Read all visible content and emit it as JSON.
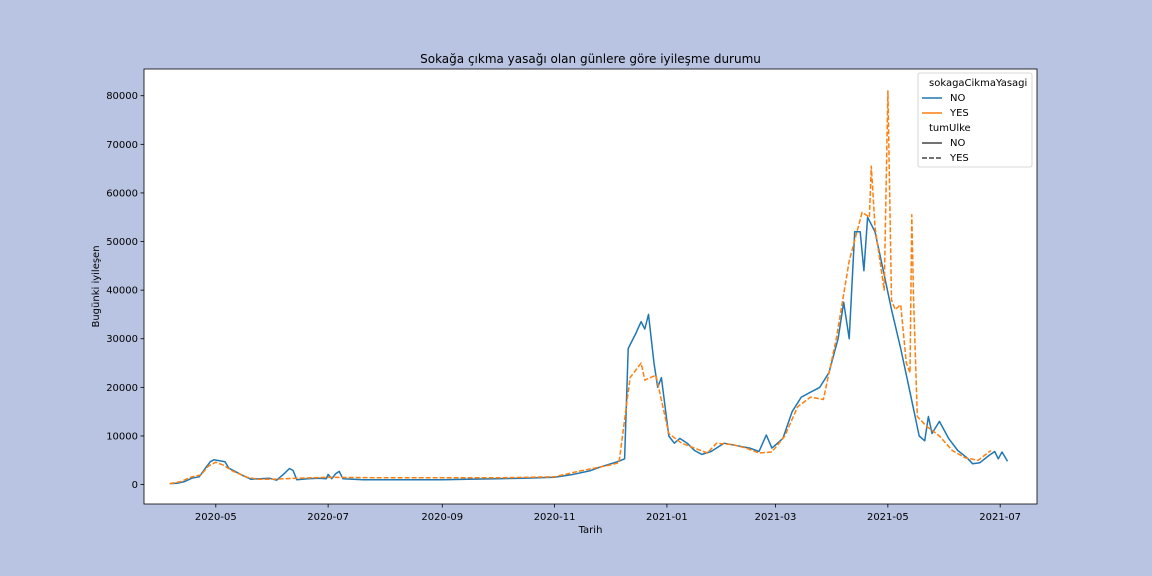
{
  "chart_data": {
    "type": "line",
    "title": "Sokağa çıkma yasağı olan günlere göre iyileşme durumu",
    "xlabel": "Tarih",
    "ylabel": "Bugünki iyileşen",
    "xlim": [
      "2020-03-23",
      "2021-07-21"
    ],
    "ylim": [
      -4000,
      85500
    ],
    "x_ticks": [
      "2020-05",
      "2020-07",
      "2020-09",
      "2020-11",
      "2021-01",
      "2021-03",
      "2021-05",
      "2021-07"
    ],
    "y_ticks": [
      0,
      10000,
      20000,
      30000,
      40000,
      50000,
      60000,
      70000,
      80000
    ],
    "grid": false,
    "legend": {
      "placement": "top-right",
      "hue_title": "sokagaCikmaYasagi",
      "style_title": "tumUlke",
      "hue_entries": [
        {
          "label": "NO",
          "color": "#1f77b4"
        },
        {
          "label": "YES",
          "color": "#ff7f0e"
        }
      ],
      "style_entries": [
        {
          "label": "NO",
          "dash": "solid"
        },
        {
          "label": "YES",
          "dash": "dashed"
        }
      ]
    },
    "series": [
      {
        "name": "NO",
        "color": "#1f77b4",
        "dash": "solid",
        "points": [
          [
            "2020-04-06",
            200
          ],
          [
            "2020-04-10",
            250
          ],
          [
            "2020-04-14",
            600
          ],
          [
            "2020-04-18",
            1300
          ],
          [
            "2020-04-22",
            1600
          ],
          [
            "2020-04-25",
            3200
          ],
          [
            "2020-04-28",
            4700
          ],
          [
            "2020-04-30",
            5100
          ],
          [
            "2020-05-03",
            4900
          ],
          [
            "2020-05-06",
            4700
          ],
          [
            "2020-05-08",
            3400
          ],
          [
            "2020-05-12",
            2600
          ],
          [
            "2020-05-16",
            1800
          ],
          [
            "2020-05-20",
            1100
          ],
          [
            "2020-05-25",
            1200
          ],
          [
            "2020-05-30",
            1300
          ],
          [
            "2020-06-03",
            900
          ],
          [
            "2020-06-07",
            2200
          ],
          [
            "2020-06-10",
            3300
          ],
          [
            "2020-06-12",
            2900
          ],
          [
            "2020-06-14",
            1000
          ],
          [
            "2020-06-20",
            1200
          ],
          [
            "2020-06-26",
            1300
          ],
          [
            "2020-06-30",
            1200
          ],
          [
            "2020-07-01",
            2100
          ],
          [
            "2020-07-03",
            1200
          ],
          [
            "2020-07-05",
            2200
          ],
          [
            "2020-07-07",
            2700
          ],
          [
            "2020-07-09",
            1200
          ],
          [
            "2020-07-20",
            1000
          ],
          [
            "2020-08-01",
            1000
          ],
          [
            "2020-08-15",
            1000
          ],
          [
            "2020-09-01",
            1000
          ],
          [
            "2020-09-15",
            1100
          ],
          [
            "2020-10-01",
            1200
          ],
          [
            "2020-10-15",
            1300
          ],
          [
            "2020-11-01",
            1500
          ],
          [
            "2020-11-10",
            2000
          ],
          [
            "2020-11-20",
            2800
          ],
          [
            "2020-11-25",
            3500
          ],
          [
            "2020-12-01",
            4200
          ],
          [
            "2020-12-06",
            4800
          ],
          [
            "2020-12-09",
            5300
          ],
          [
            "2020-12-11",
            28000
          ],
          [
            "2020-12-15",
            31000
          ],
          [
            "2020-12-18",
            33500
          ],
          [
            "2020-12-20",
            32000
          ],
          [
            "2020-12-22",
            35000
          ],
          [
            "2020-12-25",
            25000
          ],
          [
            "2020-12-27",
            20000
          ],
          [
            "2020-12-29",
            22000
          ],
          [
            "2020-12-31",
            16000
          ],
          [
            "2021-01-02",
            10000
          ],
          [
            "2021-01-05",
            8500
          ],
          [
            "2021-01-08",
            9500
          ],
          [
            "2021-01-12",
            8500
          ],
          [
            "2021-01-16",
            7000
          ],
          [
            "2021-01-20",
            6200
          ],
          [
            "2021-01-25",
            6800
          ],
          [
            "2021-02-01",
            8500
          ],
          [
            "2021-02-08",
            8000
          ],
          [
            "2021-02-15",
            7500
          ],
          [
            "2021-02-20",
            6800
          ],
          [
            "2021-02-24",
            10200
          ],
          [
            "2021-02-27",
            7500
          ],
          [
            "2021-03-05",
            9500
          ],
          [
            "2021-03-10",
            15000
          ],
          [
            "2021-03-15",
            18000
          ],
          [
            "2021-03-20",
            19000
          ],
          [
            "2021-03-25",
            20000
          ],
          [
            "2021-03-30",
            23000
          ],
          [
            "2021-04-04",
            30000
          ],
          [
            "2021-04-07",
            37500
          ],
          [
            "2021-04-10",
            30000
          ],
          [
            "2021-04-13",
            52000
          ],
          [
            "2021-04-16",
            52000
          ],
          [
            "2021-04-18",
            44000
          ],
          [
            "2021-04-20",
            55000
          ],
          [
            "2021-04-24",
            52000
          ],
          [
            "2021-04-28",
            45000
          ],
          [
            "2021-05-03",
            36000
          ],
          [
            "2021-05-08",
            28000
          ],
          [
            "2021-05-13",
            19000
          ],
          [
            "2021-05-18",
            10000
          ],
          [
            "2021-05-21",
            9000
          ],
          [
            "2021-05-23",
            14000
          ],
          [
            "2021-05-25",
            10500
          ],
          [
            "2021-05-29",
            13000
          ],
          [
            "2021-06-03",
            9500
          ],
          [
            "2021-06-08",
            7000
          ],
          [
            "2021-06-13",
            5500
          ],
          [
            "2021-06-16",
            4300
          ],
          [
            "2021-06-20",
            4500
          ],
          [
            "2021-06-25",
            6000
          ],
          [
            "2021-06-28",
            6800
          ],
          [
            "2021-06-30",
            5300
          ],
          [
            "2021-07-02",
            6700
          ],
          [
            "2021-07-05",
            4800
          ]
        ]
      },
      {
        "name": "YES",
        "color": "#ff7f0e",
        "dash": "dashed",
        "points": [
          [
            "2020-04-06",
            200
          ],
          [
            "2020-04-12",
            600
          ],
          [
            "2020-04-18",
            1600
          ],
          [
            "2020-04-23",
            2000
          ],
          [
            "2020-04-27",
            3800
          ],
          [
            "2020-05-01",
            4600
          ],
          [
            "2020-05-05",
            4000
          ],
          [
            "2020-05-10",
            2800
          ],
          [
            "2020-05-18",
            1500
          ],
          [
            "2020-05-24",
            1100
          ],
          [
            "2020-06-01",
            1100
          ],
          [
            "2020-06-15",
            1300
          ],
          [
            "2020-07-01",
            1500
          ],
          [
            "2020-08-01",
            1400
          ],
          [
            "2020-09-01",
            1400
          ],
          [
            "2020-10-01",
            1400
          ],
          [
            "2020-11-01",
            1600
          ],
          [
            "2020-11-15",
            2800
          ],
          [
            "2020-12-01",
            4000
          ],
          [
            "2020-12-06",
            4500
          ],
          [
            "2020-12-12",
            22000
          ],
          [
            "2020-12-18",
            25000
          ],
          [
            "2020-12-20",
            21500
          ],
          [
            "2020-12-26",
            22500
          ],
          [
            "2021-01-02",
            10500
          ],
          [
            "2021-01-09",
            8500
          ],
          [
            "2021-01-16",
            7500
          ],
          [
            "2021-01-23",
            6500
          ],
          [
            "2021-01-28",
            8500
          ],
          [
            "2021-02-06",
            8200
          ],
          [
            "2021-02-13",
            7500
          ],
          [
            "2021-02-20",
            6500
          ],
          [
            "2021-02-27",
            6700
          ],
          [
            "2021-03-06",
            10000
          ],
          [
            "2021-03-13",
            16000
          ],
          [
            "2021-03-20",
            18000
          ],
          [
            "2021-03-27",
            17500
          ],
          [
            "2021-04-03",
            30000
          ],
          [
            "2021-04-10",
            46000
          ],
          [
            "2021-04-17",
            56000
          ],
          [
            "2021-04-21",
            55000
          ],
          [
            "2021-04-22",
            65500
          ],
          [
            "2021-04-24",
            53000
          ],
          [
            "2021-04-29",
            40000
          ],
          [
            "2021-05-01",
            81000
          ],
          [
            "2021-05-03",
            38000
          ],
          [
            "2021-05-05",
            36000
          ],
          [
            "2021-05-08",
            37000
          ],
          [
            "2021-05-11",
            25000
          ],
          [
            "2021-05-13",
            23000
          ],
          [
            "2021-05-14",
            55500
          ],
          [
            "2021-05-15",
            38000
          ],
          [
            "2021-05-17",
            14000
          ],
          [
            "2021-05-22",
            12000
          ],
          [
            "2021-05-29",
            10000
          ],
          [
            "2021-06-05",
            7000
          ],
          [
            "2021-06-12",
            5500
          ],
          [
            "2021-06-19",
            5000
          ],
          [
            "2021-06-26",
            7000
          ]
        ]
      }
    ]
  }
}
